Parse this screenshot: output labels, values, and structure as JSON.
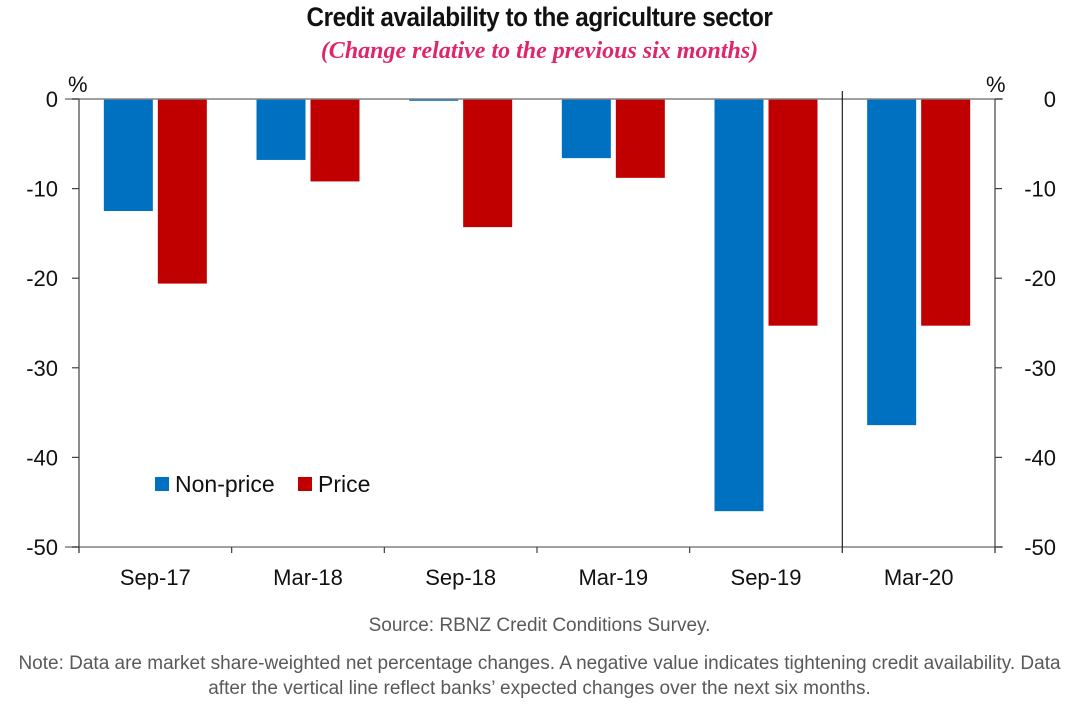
{
  "chart_data": {
    "type": "bar",
    "title": "Credit availability to the agriculture sector",
    "subtitle": "(Change relative to the previous six months)",
    "xlabel": "",
    "ylabel": "%",
    "ylabel_right": "%",
    "ylim": [
      -50,
      0
    ],
    "yticks": [
      0,
      -10,
      -20,
      -30,
      -40,
      -50
    ],
    "ytick_labels": [
      "0",
      "-10",
      "-20",
      "-30",
      "-40",
      "-50"
    ],
    "grid": false,
    "categories": [
      "Sep-17",
      "Mar-18",
      "Sep-18",
      "Mar-19",
      "Sep-19",
      "Mar-20"
    ],
    "series": [
      {
        "name": "Non-price",
        "color": "#0070c0",
        "values": [
          -12.5,
          -6.8,
          -0.2,
          -6.6,
          -46.0,
          -36.4
        ]
      },
      {
        "name": "Price",
        "color": "#c00000",
        "values": [
          -20.6,
          -9.2,
          -14.3,
          -8.8,
          -25.3,
          -25.3
        ]
      }
    ],
    "legend": {
      "placement": "bottom-left",
      "entries": [
        "Non-price",
        "Price"
      ]
    },
    "annotations": [
      {
        "type": "vertical-line",
        "between_categories": [
          "Sep-19",
          "Mar-20"
        ],
        "meaning": "Data after the vertical line reflect banks' expected changes"
      }
    ],
    "source": "Source: RBNZ Credit Conditions Survey.",
    "note": "Note: Data are market share-weighted net percentage changes. A negative value indicates tightening credit availability. Data after the vertical line reflect banks’ expected changes over the next six months."
  }
}
